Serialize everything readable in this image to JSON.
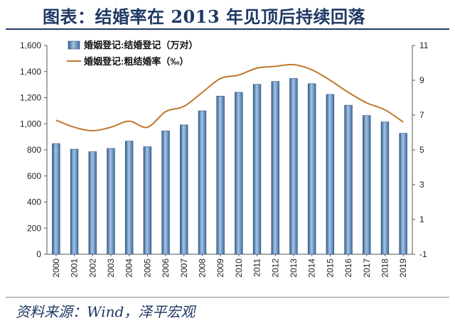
{
  "header": {
    "title": "图表：结婚率在 2013 年见顶后持续回落"
  },
  "footer": {
    "source": "资料来源：Wind，泽平宏观"
  },
  "chart_data": {
    "type": "bar",
    "categories": [
      "2000",
      "2001",
      "2002",
      "2003",
      "2004",
      "2005",
      "2006",
      "2007",
      "2008",
      "2009",
      "2010",
      "2011",
      "2012",
      "2013",
      "2014",
      "2015",
      "2016",
      "2017",
      "2018",
      "2019"
    ],
    "series": [
      {
        "name": "婚姻登记:结婚登记（万对）",
        "type": "bar",
        "axis": "left",
        "color": "#4f81bd",
        "values": [
          848,
          805,
          786,
          811,
          867,
          824,
          945,
          991,
          1099,
          1212,
          1241,
          1302,
          1324,
          1347,
          1307,
          1225,
          1142,
          1063,
          1014,
          927
        ]
      },
      {
        "name": "婚姻登记:粗结婚率（‰）",
        "type": "line",
        "axis": "right",
        "color": "#c0782c",
        "values": [
          6.7,
          6.3,
          6.1,
          6.3,
          6.65,
          6.3,
          7.2,
          7.5,
          8.3,
          9.1,
          9.3,
          9.7,
          9.8,
          9.9,
          9.6,
          9.0,
          8.3,
          7.7,
          7.3,
          6.6
        ]
      }
    ],
    "y_left": {
      "min": 0,
      "max": 1600,
      "ticks": [
        "0",
        "200",
        "400",
        "600",
        "800",
        "1,000",
        "1,200",
        "1,400",
        "1,600"
      ]
    },
    "y_right": {
      "min": -1,
      "max": 11,
      "ticks": [
        "-1",
        "1",
        "3",
        "5",
        "7",
        "9",
        "11"
      ]
    },
    "legend_position": "top-left"
  }
}
